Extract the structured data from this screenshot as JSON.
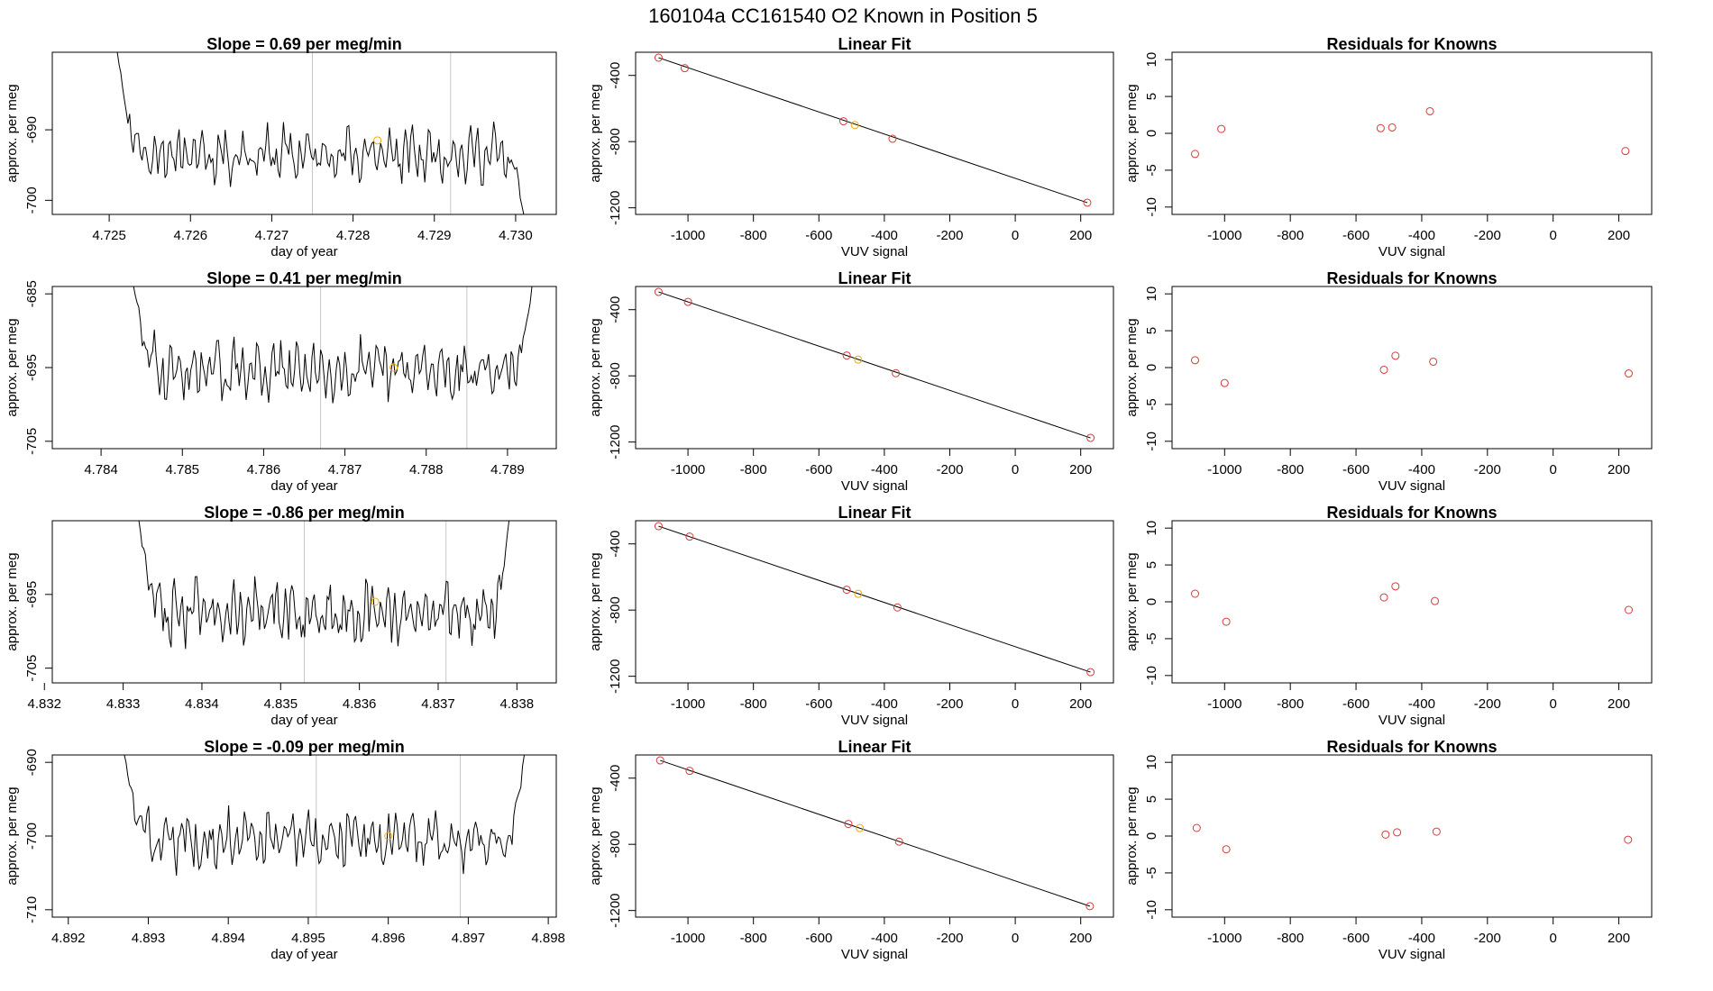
{
  "figure_title": "160104a      CC161540    O2 Known in Position  5",
  "chart_data": [
    {
      "type": "line",
      "title": "Slope =  0.69  per meg/min",
      "xlabel": "day of year",
      "ylabel": "approx. per meg",
      "xlim": [
        4.7243,
        4.7305
      ],
      "ylim": [
        -702,
        -679
      ],
      "xticks": [
        4.725,
        4.726,
        4.727,
        4.728,
        4.729,
        4.73
      ],
      "xtick_labels": [
        "4.725",
        "4.726",
        "4.727",
        "4.728",
        "4.729",
        "4.730"
      ],
      "yticks": [
        -700,
        -690
      ],
      "ytick_labels": [
        "-700",
        "-690"
      ],
      "vlines": [
        4.7275,
        4.7292
      ],
      "x_start": 4.7251,
      "x_end": 4.7301,
      "start_value": -679,
      "end_value": -702,
      "noise_seed": 11,
      "noise_level": -693.5,
      "noise_amplitude": 3.6,
      "highlight_point": {
        "x": 4.7283,
        "y": -691.5
      }
    },
    {
      "type": "scatter",
      "title": "Linear Fit",
      "xlabel": "VUV signal",
      "ylabel": "approx. per meg",
      "xlim": [
        -1160,
        300
      ],
      "ylim": [
        -1240,
        -260
      ],
      "xticks": [
        -1000,
        -800,
        -600,
        -400,
        -200,
        0,
        200
      ],
      "xtick_labels": [
        "-1000",
        "-800",
        "-600",
        "-400",
        "-200",
        "0",
        "200"
      ],
      "yticks": [
        -1200,
        -800,
        -400
      ],
      "ytick_labels": [
        "-1200",
        "-800",
        "-400"
      ],
      "points_x": [
        -1090,
        -1010,
        -525,
        -375,
        220
      ],
      "points_y": [
        -293,
        -356,
        -677,
        -783,
        -1169
      ],
      "highlight_x": [
        -490
      ],
      "highlight_y": [
        -700
      ],
      "fit_line": {
        "x": [
          -1090,
          220
        ],
        "y": [
          -293,
          -1169
        ]
      }
    },
    {
      "type": "scatter",
      "title": "Residuals for Knowns",
      "xlabel": "VUV signal",
      "ylabel": "approx. per meg",
      "xlim": [
        -1160,
        300
      ],
      "ylim": [
        -11,
        11
      ],
      "xticks": [
        -1000,
        -800,
        -600,
        -400,
        -200,
        0,
        200
      ],
      "xtick_labels": [
        "-1000",
        "-800",
        "-600",
        "-400",
        "-200",
        "0",
        "200"
      ],
      "yticks": [
        -10,
        -5,
        0,
        5,
        10
      ],
      "ytick_labels": [
        "-10",
        "-5",
        "0",
        "5",
        "10"
      ],
      "points_x": [
        -1090,
        -1010,
        -525,
        -490,
        -375,
        220
      ],
      "points_y": [
        -2.8,
        0.6,
        0.7,
        0.8,
        3.0,
        -2.4
      ]
    },
    {
      "type": "line",
      "title": "Slope =  0.41  per meg/min",
      "xlabel": "day of year",
      "ylabel": "approx. per meg",
      "xlim": [
        4.7834,
        4.7896
      ],
      "ylim": [
        -706,
        -684
      ],
      "xticks": [
        4.784,
        4.785,
        4.786,
        4.787,
        4.788,
        4.789
      ],
      "xtick_labels": [
        "4.784",
        "4.785",
        "4.786",
        "4.787",
        "4.788",
        "4.789"
      ],
      "yticks": [
        -705,
        -695,
        -685
      ],
      "ytick_labels": [
        "-705",
        "-695",
        "-685"
      ],
      "vlines": [
        4.7867,
        4.7885
      ],
      "x_start": 4.7844,
      "x_end": 4.7893,
      "start_value": -684,
      "end_value": -684,
      "noise_seed": 29,
      "noise_level": -695.5,
      "noise_amplitude": 3.8,
      "highlight_point": {
        "x": 4.7876,
        "y": -695
      }
    },
    {
      "type": "scatter",
      "title": "Linear Fit",
      "xlabel": "VUV signal",
      "ylabel": "approx. per meg",
      "xlim": [
        -1160,
        300
      ],
      "ylim": [
        -1240,
        -260
      ],
      "xticks": [
        -1000,
        -800,
        -600,
        -400,
        -200,
        0,
        200
      ],
      "xtick_labels": [
        "-1000",
        "-800",
        "-600",
        "-400",
        "-200",
        "0",
        "200"
      ],
      "yticks": [
        -1200,
        -800,
        -400
      ],
      "ytick_labels": [
        "-1200",
        "-800",
        "-400"
      ],
      "points_x": [
        -1090,
        -1000,
        -515,
        -365,
        230
      ],
      "points_y": [
        -293,
        -353,
        -677,
        -784,
        -1175
      ],
      "highlight_x": [
        -480
      ],
      "highlight_y": [
        -702
      ],
      "fit_line": {
        "x": [
          -1090,
          230
        ],
        "y": [
          -293,
          -1175
        ]
      }
    },
    {
      "type": "scatter",
      "title": "Residuals for Knowns",
      "xlabel": "VUV signal",
      "ylabel": "approx. per meg",
      "xlim": [
        -1160,
        300
      ],
      "ylim": [
        -11,
        11
      ],
      "xticks": [
        -1000,
        -800,
        -600,
        -400,
        -200,
        0,
        200
      ],
      "xtick_labels": [
        "-1000",
        "-800",
        "-600",
        "-400",
        "-200",
        "0",
        "200"
      ],
      "yticks": [
        -10,
        -5,
        0,
        5,
        10
      ],
      "ytick_labels": [
        "-10",
        "-5",
        "0",
        "5",
        "10"
      ],
      "points_x": [
        -1090,
        -1000,
        -515,
        -480,
        -365,
        230
      ],
      "points_y": [
        1.0,
        -2.1,
        -0.3,
        1.6,
        0.8,
        -0.8
      ]
    },
    {
      "type": "line",
      "title": "Slope =  -0.86  per meg/min",
      "xlabel": "day of year",
      "ylabel": "approx. per meg",
      "xlim": [
        4.8321,
        4.8385
      ],
      "ylim": [
        -707,
        -685
      ],
      "xticks": [
        4.832,
        4.833,
        4.834,
        4.835,
        4.836,
        4.837,
        4.838
      ],
      "xtick_labels": [
        "4.832",
        "4.833",
        "4.834",
        "4.835",
        "4.836",
        "4.837",
        "4.838"
      ],
      "yticks": [
        -705,
        -695
      ],
      "ytick_labels": [
        "-705",
        "-695"
      ],
      "vlines": [
        4.8353,
        4.8371
      ],
      "x_start": 4.8332,
      "x_end": 4.8379,
      "start_value": -685,
      "end_value": -685,
      "noise_seed": 47,
      "noise_level": -697.5,
      "noise_amplitude": 4.0,
      "highlight_point": {
        "x": 4.8362,
        "y": -696
      }
    },
    {
      "type": "scatter",
      "title": "Linear Fit",
      "xlabel": "VUV signal",
      "ylabel": "approx. per meg",
      "xlim": [
        -1160,
        300
      ],
      "ylim": [
        -1240,
        -260
      ],
      "xticks": [
        -1000,
        -800,
        -600,
        -400,
        -200,
        0,
        200
      ],
      "xtick_labels": [
        "-1000",
        "-800",
        "-600",
        "-400",
        "-200",
        "0",
        "200"
      ],
      "yticks": [
        -1200,
        -800,
        -400
      ],
      "ytick_labels": [
        "-1200",
        "-800",
        "-400"
      ],
      "points_x": [
        -1090,
        -995,
        -515,
        -360,
        230
      ],
      "points_y": [
        -293,
        -356,
        -677,
        -784,
        -1175
      ],
      "highlight_x": [
        -480
      ],
      "highlight_y": [
        -702
      ],
      "fit_line": {
        "x": [
          -1090,
          230
        ],
        "y": [
          -293,
          -1175
        ]
      }
    },
    {
      "type": "scatter",
      "title": "Residuals for Knowns",
      "xlabel": "VUV signal",
      "ylabel": "approx. per meg",
      "xlim": [
        -1160,
        300
      ],
      "ylim": [
        -11,
        11
      ],
      "xticks": [
        -1000,
        -800,
        -600,
        -400,
        -200,
        0,
        200
      ],
      "xtick_labels": [
        "-1000",
        "-800",
        "-600",
        "-400",
        "-200",
        "0",
        "200"
      ],
      "yticks": [
        -10,
        -5,
        0,
        5,
        10
      ],
      "ytick_labels": [
        "-10",
        "-5",
        "0",
        "5",
        "10"
      ],
      "points_x": [
        -1090,
        -995,
        -515,
        -480,
        -360,
        230
      ],
      "points_y": [
        1.1,
        -2.7,
        0.6,
        2.1,
        0.1,
        -1.1
      ]
    },
    {
      "type": "line",
      "title": "Slope =  -0.09  per meg/min",
      "xlabel": "day of year",
      "ylabel": "approx. per meg",
      "xlim": [
        4.8918,
        4.8981
      ],
      "ylim": [
        -711,
        -689
      ],
      "xticks": [
        4.892,
        4.893,
        4.894,
        4.895,
        4.896,
        4.897,
        4.898
      ],
      "xtick_labels": [
        "4.892",
        "4.893",
        "4.894",
        "4.895",
        "4.896",
        "4.897",
        "4.898"
      ],
      "yticks": [
        -710,
        -700,
        -690
      ],
      "ytick_labels": [
        "-710",
        "-700",
        "-690"
      ],
      "vlines": [
        4.8951,
        4.8969
      ],
      "x_start": 4.8927,
      "x_end": 4.8977,
      "start_value": -689,
      "end_value": -689,
      "noise_seed": 83,
      "noise_level": -700.5,
      "noise_amplitude": 3.7,
      "highlight_point": {
        "x": 4.896,
        "y": -700
      }
    },
    {
      "type": "scatter",
      "title": "Linear Fit",
      "xlabel": "VUV signal",
      "ylabel": "approx. per meg",
      "xlim": [
        -1160,
        300
      ],
      "ylim": [
        -1240,
        -260
      ],
      "xticks": [
        -1000,
        -800,
        -600,
        -400,
        -200,
        0,
        200
      ],
      "xtick_labels": [
        "-1000",
        "-800",
        "-600",
        "-400",
        "-200",
        "0",
        "200"
      ],
      "yticks": [
        -1200,
        -800,
        -400
      ],
      "ytick_labels": [
        "-1200",
        "-800",
        "-400"
      ],
      "points_x": [
        -1085,
        -995,
        -510,
        -355,
        228
      ],
      "points_y": [
        -293,
        -356,
        -677,
        -784,
        -1174
      ],
      "highlight_x": [
        -475
      ],
      "highlight_y": [
        -702
      ],
      "fit_line": {
        "x": [
          -1085,
          228
        ],
        "y": [
          -293,
          -1174
        ]
      }
    },
    {
      "type": "scatter",
      "title": "Residuals for Knowns",
      "xlabel": "VUV signal",
      "ylabel": "approx. per meg",
      "xlim": [
        -1160,
        300
      ],
      "ylim": [
        -11,
        11
      ],
      "xticks": [
        -1000,
        -800,
        -600,
        -400,
        -200,
        0,
        200
      ],
      "xtick_labels": [
        "-1000",
        "-800",
        "-600",
        "-400",
        "-200",
        "0",
        "200"
      ],
      "yticks": [
        -10,
        -5,
        0,
        5,
        10
      ],
      "ytick_labels": [
        "-10",
        "-5",
        "0",
        "5",
        "10"
      ],
      "points_x": [
        -1085,
        -995,
        -510,
        -475,
        -355,
        228
      ],
      "points_y": [
        1.1,
        -1.8,
        0.2,
        0.5,
        0.6,
        -0.5
      ]
    }
  ],
  "colors": {
    "line": "#000000",
    "point": "#d43a3a",
    "highlight": "#f2a900",
    "vline": "#c8c8c8",
    "frame": "#000000"
  }
}
